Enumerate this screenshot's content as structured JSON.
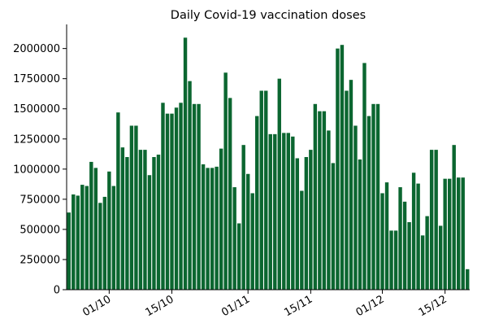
{
  "chart_data": {
    "type": "bar",
    "title": "Daily Covid-19 vaccination doses",
    "xlabel": "",
    "ylabel": "",
    "bar_color": "#0b6630",
    "start_date": "2021-09-22",
    "ylim": [
      0,
      2200000
    ],
    "yticks": [
      0,
      250000,
      500000,
      750000,
      1000000,
      1250000,
      1500000,
      1750000,
      2000000
    ],
    "xticks": [
      {
        "date": "2021-10-01",
        "label": "01/10"
      },
      {
        "date": "2021-10-15",
        "label": "15/10"
      },
      {
        "date": "2021-11-01",
        "label": "01/11"
      },
      {
        "date": "2021-11-15",
        "label": "15/11"
      },
      {
        "date": "2021-12-01",
        "label": "01/12"
      },
      {
        "date": "2021-12-15",
        "label": "15/12"
      }
    ],
    "values": [
      640000,
      790000,
      780000,
      870000,
      860000,
      1060000,
      1010000,
      720000,
      770000,
      980000,
      860000,
      1470000,
      1180000,
      1100000,
      1360000,
      1360000,
      1160000,
      1160000,
      950000,
      1100000,
      1120000,
      1550000,
      1460000,
      1460000,
      1510000,
      1550000,
      2090000,
      1730000,
      1540000,
      1540000,
      1040000,
      1010000,
      1010000,
      1020000,
      1170000,
      1800000,
      1590000,
      850000,
      550000,
      1200000,
      960000,
      800000,
      1440000,
      1650000,
      1650000,
      1290000,
      1290000,
      1750000,
      1300000,
      1300000,
      1270000,
      1090000,
      820000,
      1100000,
      1160000,
      1540000,
      1480000,
      1480000,
      1320000,
      1050000,
      2000000,
      2030000,
      1650000,
      1740000,
      1360000,
      1080000,
      1880000,
      1440000,
      1540000,
      1540000,
      800000,
      890000,
      490000,
      490000,
      850000,
      730000,
      560000,
      970000,
      880000,
      450000,
      610000,
      1160000,
      1160000,
      530000,
      920000,
      920000,
      1200000,
      930000,
      930000,
      170000
    ]
  }
}
